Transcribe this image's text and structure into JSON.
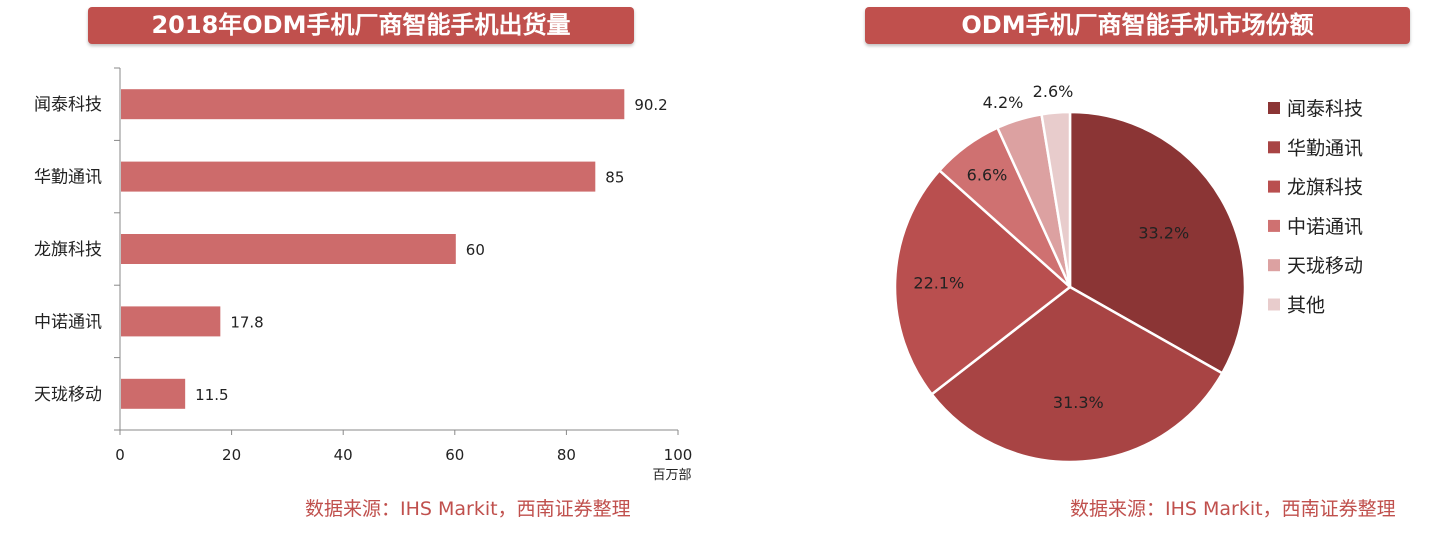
{
  "left_panel": {
    "title": "2018年ODM手机厂商智能手机出货量",
    "source": "数据来源：IHS Markit，西南证券整理"
  },
  "right_panel": {
    "title": "ODM手机厂商智能手机市场份额",
    "source": "数据来源：IHS Markit，西南证券整理"
  },
  "colors": {
    "title_bg": "#c0504d",
    "bar": "#cd6b6b",
    "source_text": "#c0504d"
  },
  "chart_data": [
    {
      "type": "bar",
      "orientation": "horizontal",
      "categories": [
        "闻泰科技",
        "华勤通讯",
        "龙旗科技",
        "中诺通讯",
        "天珑移动"
      ],
      "values": [
        90.2,
        85,
        60,
        17.8,
        11.5
      ],
      "value_labels": [
        "90.2",
        "85",
        "60",
        "17.8",
        "11.5"
      ],
      "xlim": [
        0,
        100
      ],
      "xticks": [
        "0",
        "20",
        "40",
        "60",
        "80",
        "100"
      ],
      "xlabel": "百万部",
      "grid": false
    },
    {
      "type": "pie",
      "labels": [
        "闻泰科技",
        "华勤通讯",
        "龙旗科技",
        "中诺通讯",
        "天珑移动",
        "其他"
      ],
      "values": [
        33.2,
        31.3,
        22.1,
        6.6,
        4.2,
        2.6
      ],
      "value_labels": [
        "33.2%",
        "31.3%",
        "22.1%",
        "6.6%",
        "4.2%",
        "2.6%"
      ],
      "colors": [
        "#8b3535",
        "#a84444",
        "#b94f4f",
        "#cf7171",
        "#dca1a1",
        "#e8cccc"
      ],
      "legend_position": "right"
    }
  ]
}
